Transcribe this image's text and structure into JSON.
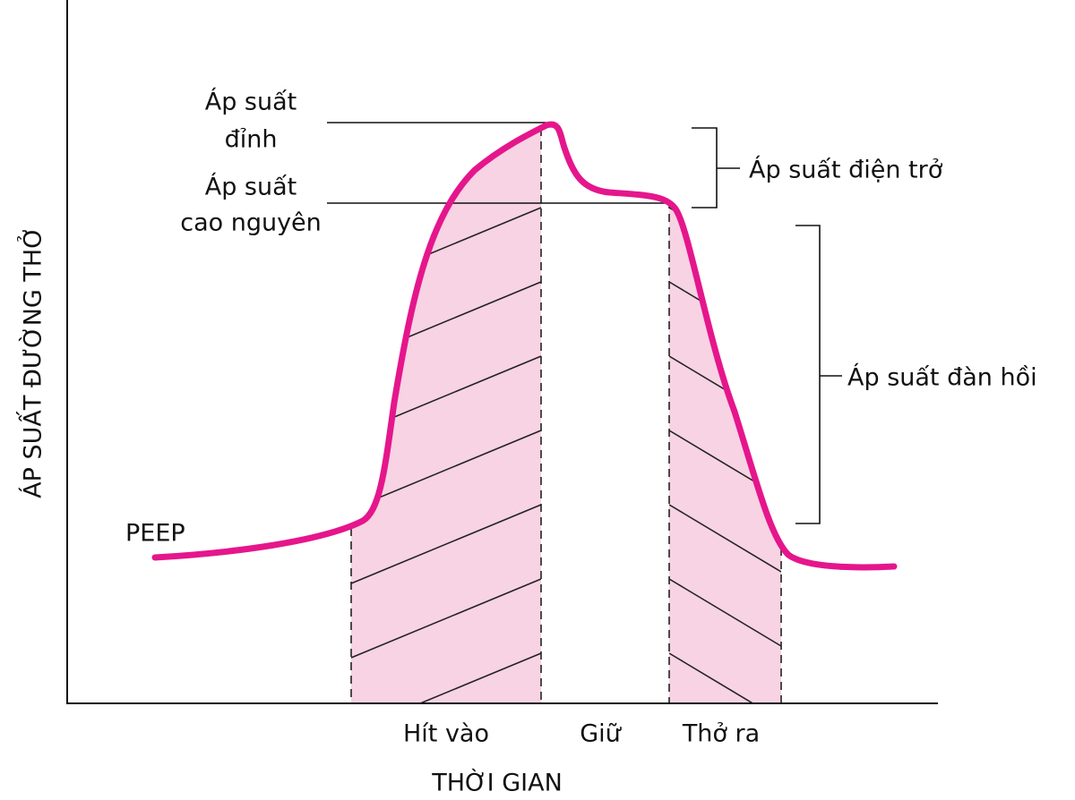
{
  "axes": {
    "y_label": "ÁP SUẤT ĐƯỜNG THỞ",
    "x_label": "THỜI GIAN"
  },
  "phases": [
    "Hít vào",
    "Giữ",
    "Thở ra"
  ],
  "labels": {
    "peep": "PEEP",
    "peak": [
      "Áp suất",
      "đỉnh"
    ],
    "plateau": [
      "Áp suất",
      "cao nguyên"
    ],
    "resistance": "Áp suất điện trở",
    "elastic": "Áp suất đàn hồi"
  }
}
